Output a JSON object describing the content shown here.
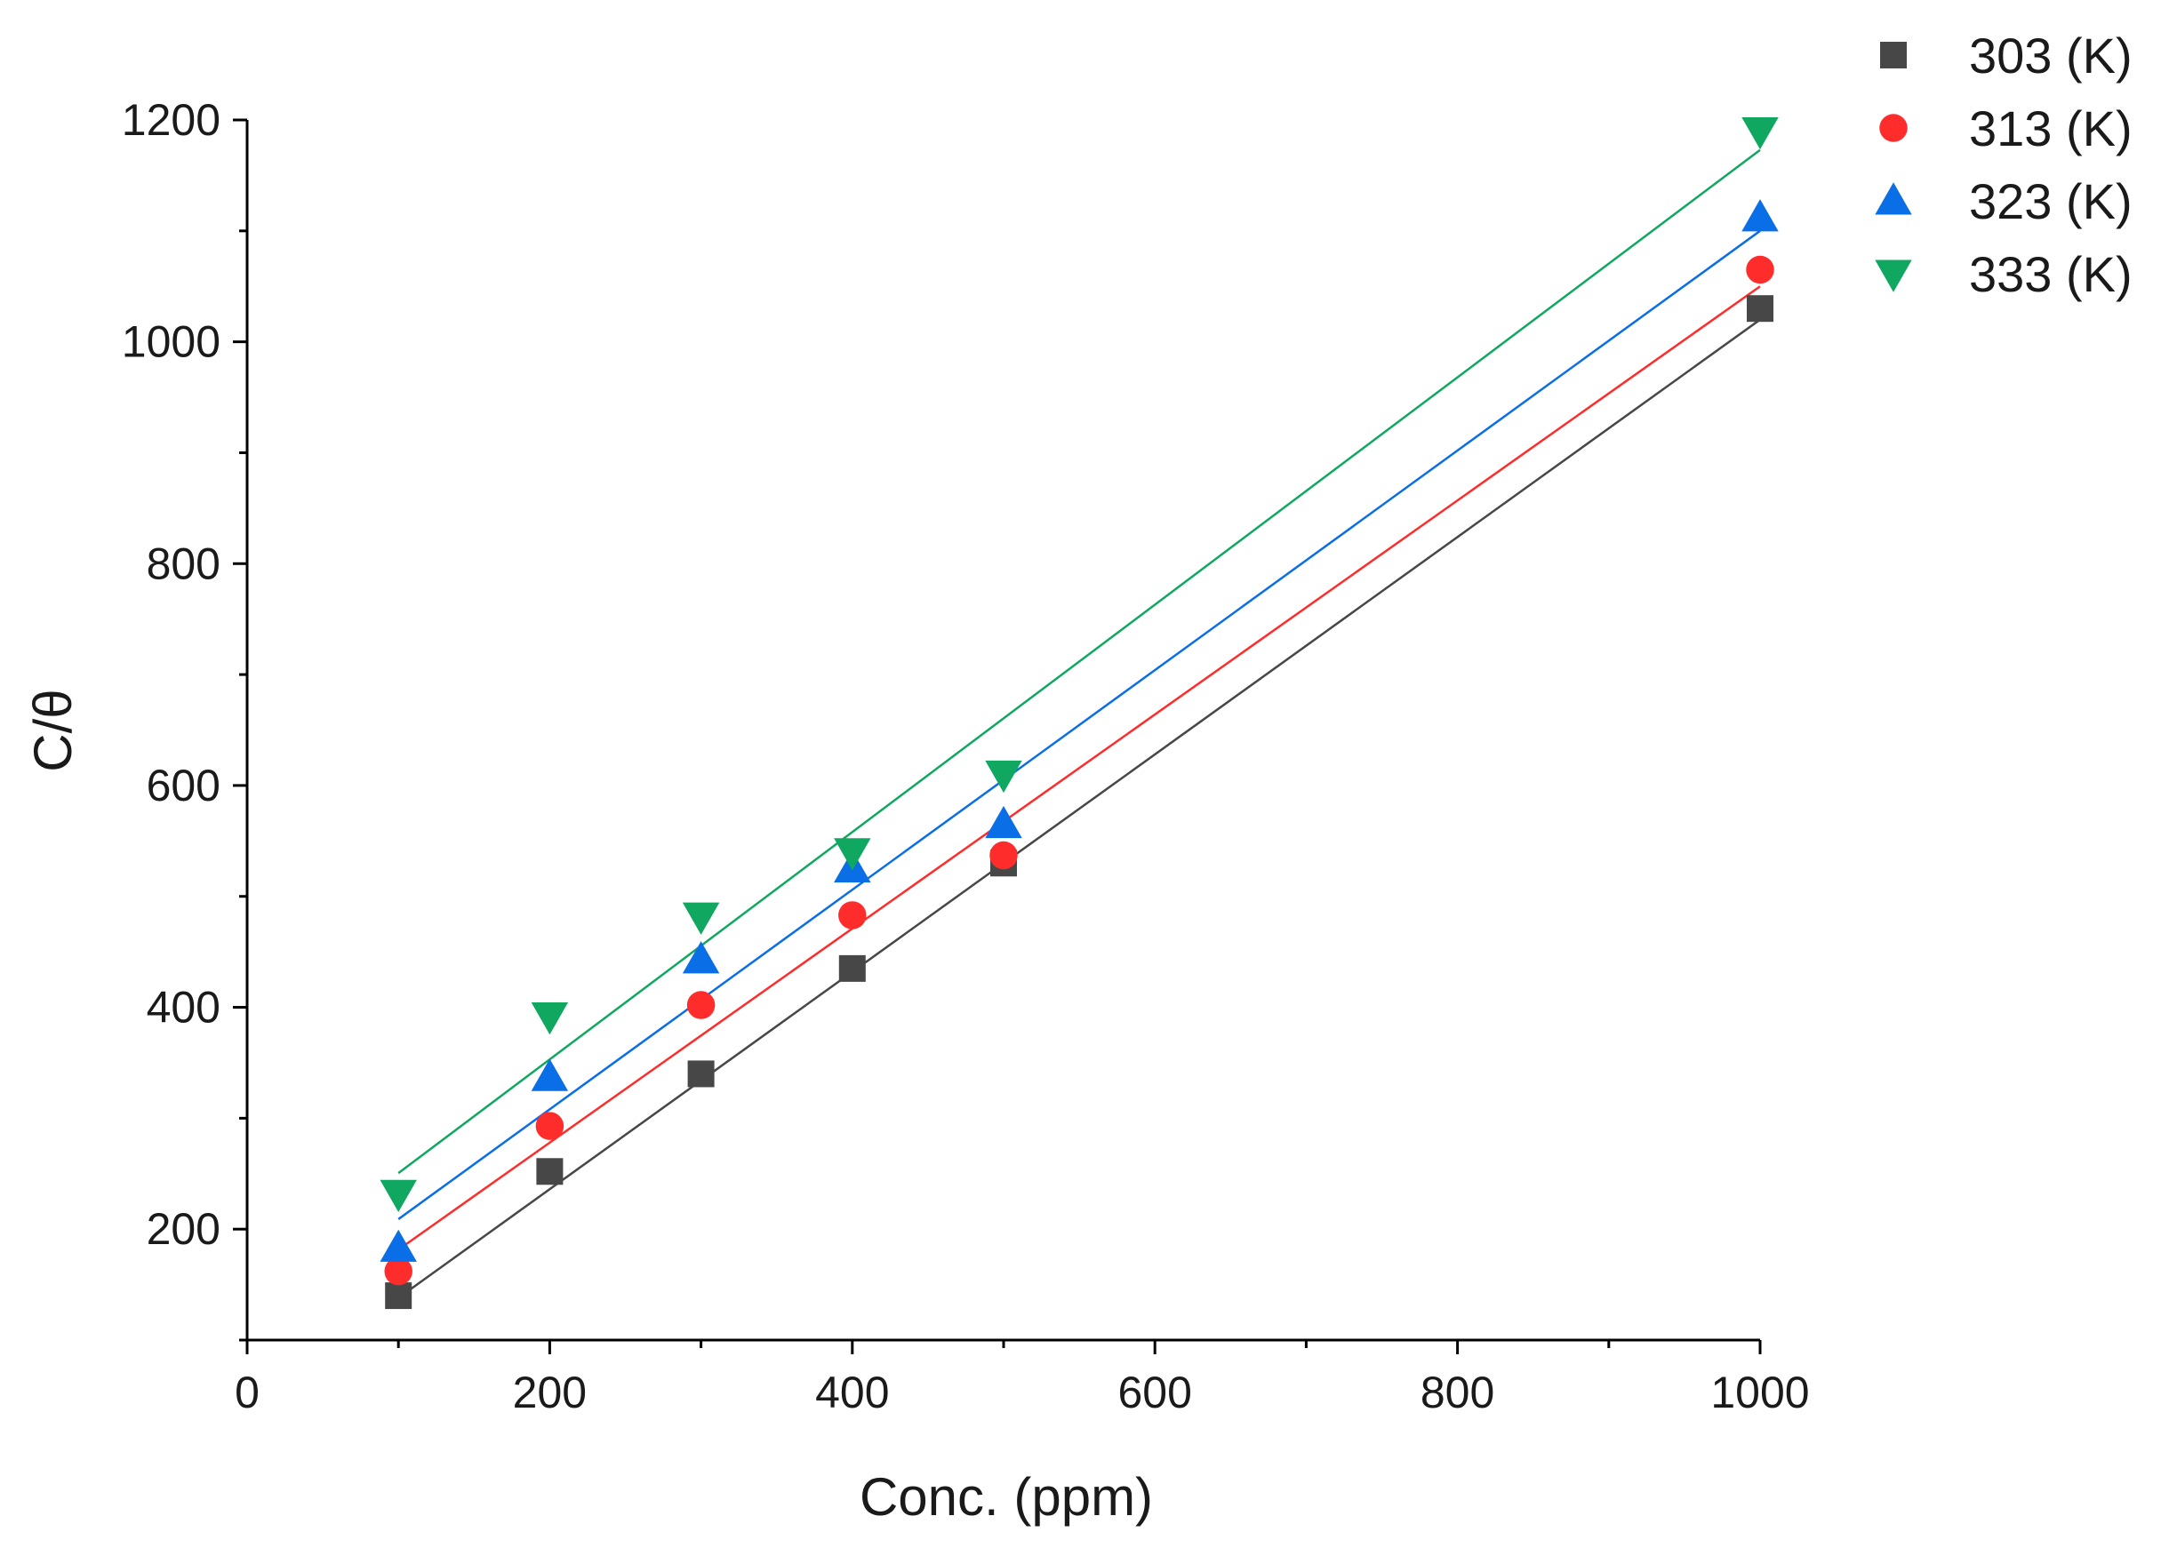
{
  "chart_data": {
    "type": "scatter",
    "title": "",
    "xlabel": "Conc. (ppm)",
    "ylabel": "C/θ",
    "xlim": [
      0,
      1000
    ],
    "ylim": [
      100,
      1200
    ],
    "x_ticks": [
      0,
      200,
      400,
      600,
      800,
      1000
    ],
    "y_ticks": [
      200,
      400,
      600,
      800,
      1000,
      1200
    ],
    "x_tick_labels": [
      "0",
      "200",
      "400",
      "600",
      "800",
      "1000"
    ],
    "y_tick_labels": [
      "200",
      "400",
      "600",
      "800",
      "1000",
      "1200"
    ],
    "legend_position": "top-right",
    "x": [
      100,
      200,
      300,
      400,
      500,
      1000
    ],
    "series": [
      {
        "name": "303 (K)",
        "marker": "square",
        "color": "#474747",
        "values": [
          140,
          252,
          340,
          435,
          530,
          1030
        ],
        "fit": {
          "slope": 0.98,
          "intercept": 40,
          "x_range": [
            100,
            1000
          ]
        }
      },
      {
        "name": "313 (K)",
        "marker": "circle",
        "color": "#ff2c2c",
        "values": [
          162,
          293,
          402,
          483,
          537,
          1065
        ],
        "fit": {
          "slope": 0.965,
          "intercept": 85,
          "x_range": [
            100,
            1000
          ]
        }
      },
      {
        "name": "323 (K)",
        "marker": "triangle-up",
        "color": "#0a6ee6",
        "values": [
          183,
          337,
          443,
          525,
          565,
          1112
        ],
        "fit": {
          "slope": 0.99,
          "intercept": 110,
          "x_range": [
            100,
            1000
          ]
        }
      },
      {
        "name": "333 (K)",
        "marker": "triangle-down",
        "color": "#10a860",
        "values": [
          232,
          392,
          482,
          540,
          610,
          1190
        ],
        "fit": {
          "slope": 1.025,
          "intercept": 148,
          "x_range": [
            100,
            1000
          ]
        }
      }
    ]
  }
}
